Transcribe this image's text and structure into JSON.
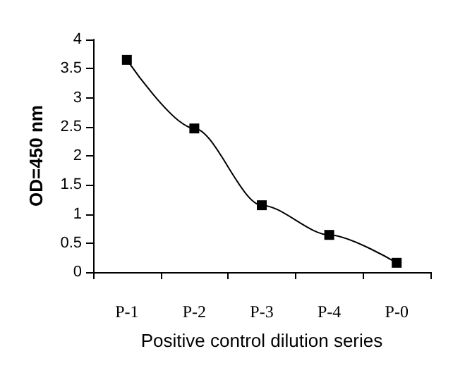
{
  "chart_data": {
    "type": "line",
    "xlabel": "Positive control dilution series",
    "ylabel": "OD=450 nm",
    "categories": [
      "P-1",
      "P-2",
      "P-3",
      "P-4",
      "P-0"
    ],
    "series": [
      {
        "color": "#000000",
        "values": [
          3.65,
          2.47,
          1.15,
          0.64,
          0.16
        ]
      }
    ],
    "ylim": [
      0,
      4
    ],
    "yticks": [
      0,
      0.5,
      1,
      1.5,
      2,
      2.5,
      3,
      3.5,
      4
    ],
    "grid": false,
    "marker": "square",
    "line_style": "solid"
  }
}
